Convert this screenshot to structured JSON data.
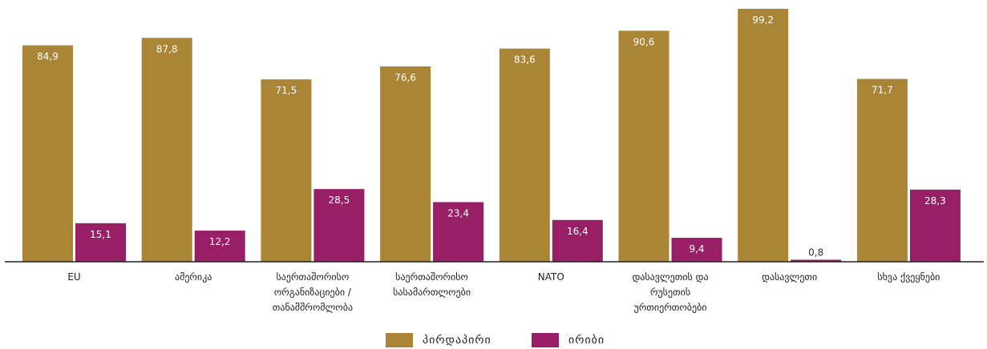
{
  "chart_data": {
    "type": "bar",
    "title": "",
    "xlabel": "",
    "ylabel": "",
    "ylim": [
      0,
      100
    ],
    "grid": false,
    "legend_position": "bottom-center",
    "categories": [
      [
        "EU"
      ],
      [
        "ამერიკა"
      ],
      [
        "საერთაშორისო",
        "ორგანიზაციები /",
        "თანამშრომლობა"
      ],
      [
        "საერთაშორისო",
        "სასამართლოები"
      ],
      [
        "NATO"
      ],
      [
        "დასავლეთის და",
        "რუსეთის",
        "ურთიერთობები"
      ],
      [
        "დასავლეთი"
      ],
      [
        "სხვა ქვეყნები"
      ]
    ],
    "series": [
      {
        "name": "პირდაპირი",
        "color": "#AA8535",
        "values": [
          84.9,
          87.8,
          71.5,
          76.6,
          83.6,
          90.6,
          99.2,
          71.7
        ]
      },
      {
        "name": "ირიბი",
        "color": "#981E65",
        "values": [
          15.1,
          12.2,
          28.5,
          23.4,
          16.4,
          9.4,
          0.8,
          28.3
        ]
      }
    ]
  }
}
